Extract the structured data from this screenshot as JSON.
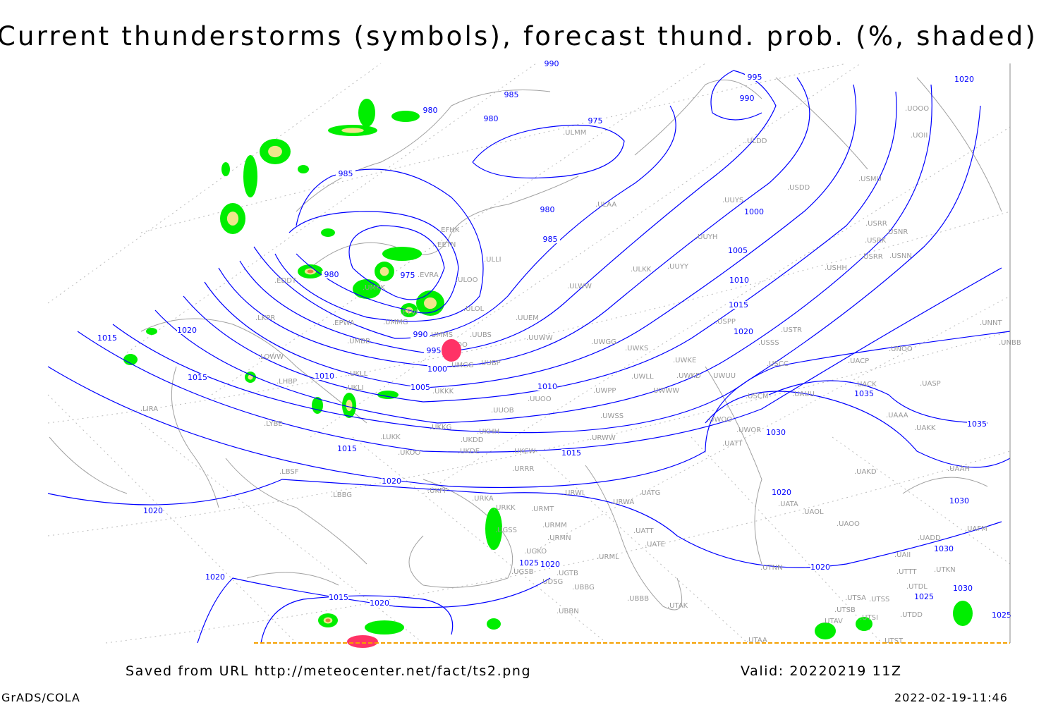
{
  "title": "Current thunderstorms (symbols), forecast thund. prob. (%, shaded)",
  "footer": {
    "saved_from": "Saved from URL http://meteocenter.net/fact/ts2.png",
    "valid": "Valid: 20220219 11Z",
    "software": "GrADS/COLA",
    "timestamp": "2022-02-19-11:46"
  },
  "colors": {
    "isobars": "#0000ff",
    "coastlines": "#a0a0a0",
    "prob_low": "#00ee00",
    "prob_mid": "#f0e68c",
    "prob_high": "#e08040",
    "thunderstorm_symbols": "#ff3366"
  },
  "isobar_labels": [
    "990",
    "995",
    "1020",
    "985",
    "990",
    "980",
    "980",
    "975",
    "985",
    "980",
    "985",
    "1000",
    "1005",
    "1010",
    "1015",
    "1020",
    "980",
    "975",
    "990",
    "995",
    "1000",
    "1005",
    "1010",
    "1010",
    "1015",
    "1020",
    "1015",
    "1015",
    "1015",
    "1020",
    "1020",
    "1020",
    "1030",
    "1030",
    "1035",
    "1035",
    "1020",
    "1025",
    "1020",
    "1020",
    "1015",
    "1020",
    "1030",
    "1030",
    "1025",
    "1025"
  ],
  "stations": [
    "ULMM",
    "ULDD",
    "USDD",
    "USMU",
    "USRR",
    "USRK",
    "USNR",
    "USRR",
    "USNN",
    "USHH",
    "UOOO",
    "UOII",
    "ULAA",
    "UUYS",
    "UUYH",
    "ULKK",
    "UUYY",
    "ULWW",
    "EFHK",
    "EETN",
    "ULLI",
    "ULOO",
    "ULOL",
    "UUEM",
    "UUWW",
    "UUBS",
    "UMMS",
    "UMOO",
    "UMGG",
    "UUBP",
    "UMBB",
    "EPWA",
    "UMMG",
    "EYVI",
    "EVRA",
    "UMKK",
    "EDDT",
    "LKPR",
    "LOWW",
    "LHBP",
    "UKLL",
    "UKLI",
    "UKKK",
    "UUOO",
    "UUOB",
    "UKHH",
    "UKDD",
    "UKKG",
    "LUKK",
    "UKOO",
    "UKDE",
    "UKCW",
    "URRR",
    "UKFF",
    "LBSF",
    "LYBE",
    "LIRA",
    "LBBG",
    "URKA",
    "URKK",
    "URMT",
    "URMM",
    "URMN",
    "UGSS",
    "UGSB",
    "UGKO",
    "UGTB",
    "UDSG",
    "UBBG",
    "UBBN",
    "UBBB",
    "UTAK",
    "URML",
    "UATE",
    "UATT",
    "UATG",
    "URWI",
    "URWA",
    "URWW",
    "UWSS",
    "UWPP",
    "UWWW",
    "UWLL",
    "UWKD",
    "UWUU",
    "UWKE",
    "UWKS",
    "UWGG",
    "USPP",
    "USTR",
    "USSS",
    "USCC",
    "USCM",
    "UAUU",
    "UACP",
    "UACK",
    "UASP",
    "UNOO",
    "UNNT",
    "UNBB",
    "UAAA",
    "UAKK",
    "UWOO",
    "UWOR",
    "UATT",
    "UAKD",
    "UAAH",
    "UATA",
    "UAOL",
    "UAOO",
    "UAFM",
    "UADD",
    "UAII",
    "UTTT",
    "UTKN",
    "UTNN",
    "UTDL",
    "UTSA",
    "UTSS",
    "UTSB",
    "UTAV",
    "UTSI",
    "UTDD",
    "UTST",
    "UTAA"
  ]
}
